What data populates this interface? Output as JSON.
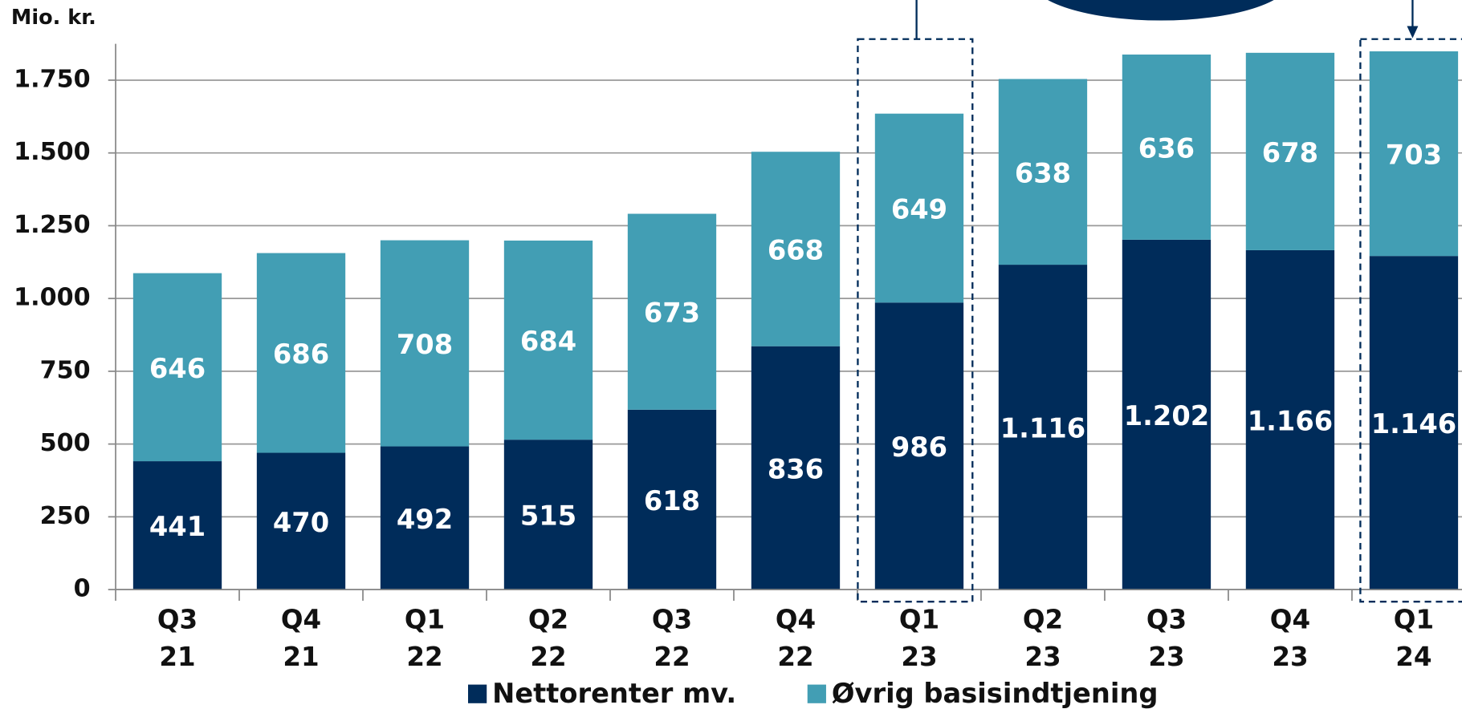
{
  "chart_data": {
    "type": "stacked_bar",
    "y_label": "Mio. kr.",
    "categories": [
      [
        "Q3",
        "21"
      ],
      [
        "Q4",
        "21"
      ],
      [
        "Q1",
        "22"
      ],
      [
        "Q2",
        "22"
      ],
      [
        "Q3",
        "22"
      ],
      [
        "Q4",
        "22"
      ],
      [
        "Q1",
        "23"
      ],
      [
        "Q2",
        "23"
      ],
      [
        "Q3",
        "23"
      ],
      [
        "Q4",
        "23"
      ],
      [
        "Q1",
        "24"
      ]
    ],
    "series": [
      {
        "name": "Nettorenter mv.",
        "color": "#002c5a",
        "values": [
          441,
          470,
          492,
          515,
          618,
          836,
          986,
          1116,
          1202,
          1166,
          1146
        ],
        "value_labels": [
          "441",
          "470",
          "492",
          "515",
          "618",
          "836",
          "986",
          "1.116",
          "1.202",
          "1.166",
          "1.146"
        ]
      },
      {
        "name": "Øvrig basisindtjening",
        "color": "#429eb4",
        "values": [
          646,
          686,
          708,
          684,
          673,
          668,
          649,
          638,
          636,
          678,
          703
        ]
      }
    ],
    "ylim": [
      0,
      1875
    ],
    "yticks": [
      0,
      250,
      500,
      750,
      {
        "value": 1000,
        "label": "1.000"
      },
      {
        "value": 1250,
        "label": "1.250"
      },
      {
        "value": 1500,
        "label": "1.500"
      },
      {
        "value": 1750,
        "label": "1.750"
      }
    ],
    "grid": true
  }
}
